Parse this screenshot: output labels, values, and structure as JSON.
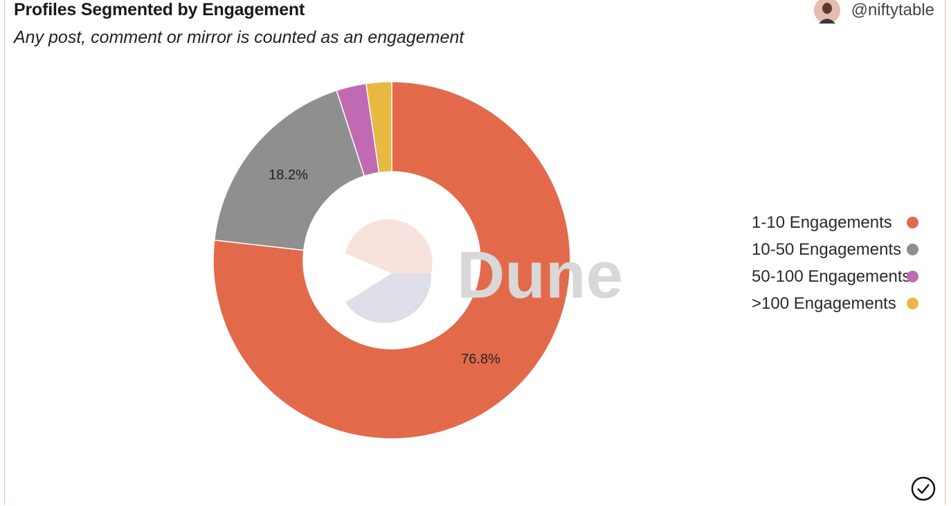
{
  "header": {
    "title": "Profiles Segmented by Engagement",
    "subtitle": "Any post, comment or mirror is counted as an engagement",
    "handle": "@niftytable"
  },
  "watermark": "Dune",
  "icons": {
    "avatar": "avatar-icon",
    "check": "check-circle-icon"
  },
  "colors": {
    "s1": "#e26a4b",
    "s2": "#8f8f8f",
    "s3": "#c06ab3",
    "s4": "#e8b941"
  },
  "chart_data": {
    "type": "pie",
    "donut": true,
    "categories": [
      "1-10 Engagements",
      "10-50 Engagements",
      "50-100 Engagements",
      ">100 Engagements"
    ],
    "values": [
      76.8,
      18.2,
      2.7,
      2.3
    ],
    "data_labels": [
      "76.8%",
      "18.2%",
      "",
      ""
    ],
    "legend_position": "right"
  }
}
